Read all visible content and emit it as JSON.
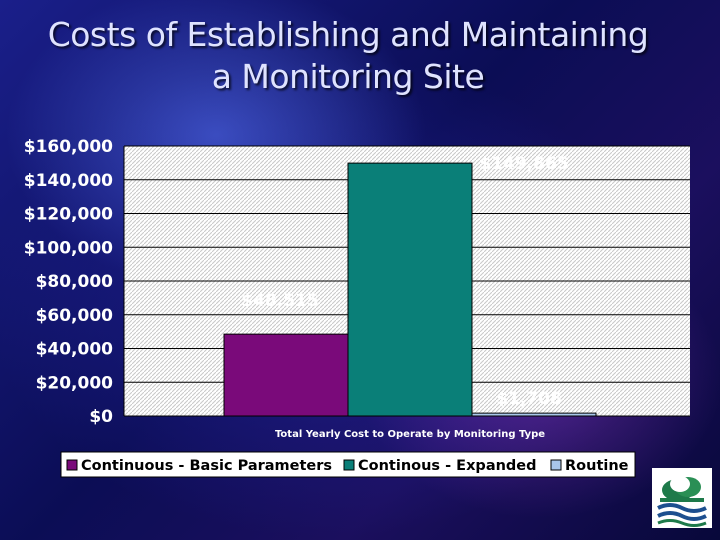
{
  "slide": {
    "title_line1": "Costs of Establishing and Maintaining",
    "title_line2": "a Monitoring Site"
  },
  "chart_data": {
    "type": "bar",
    "xlabel": "Total Yearly Cost to Operate by Monitoring Type",
    "ylabel": "",
    "ylim": [
      0,
      160000
    ],
    "yticks": [
      "$0",
      "$20,000",
      "$40,000",
      "$60,000",
      "$80,000",
      "$100,000",
      "$120,000",
      "$140,000",
      "$160,000"
    ],
    "grid": true,
    "legend_position": "bottom",
    "series": [
      {
        "name": "Continuous - Basic Parameters",
        "values": [
          48515
        ],
        "label": "$48,515",
        "color": "#7a0a7a"
      },
      {
        "name": "Continous - Expanded",
        "values": [
          149865
        ],
        "label": "$149,865",
        "color": "#0a7f78"
      },
      {
        "name": "Routine",
        "values": [
          1708
        ],
        "label": "$1,708",
        "color": "#a9c6ea"
      }
    ]
  }
}
